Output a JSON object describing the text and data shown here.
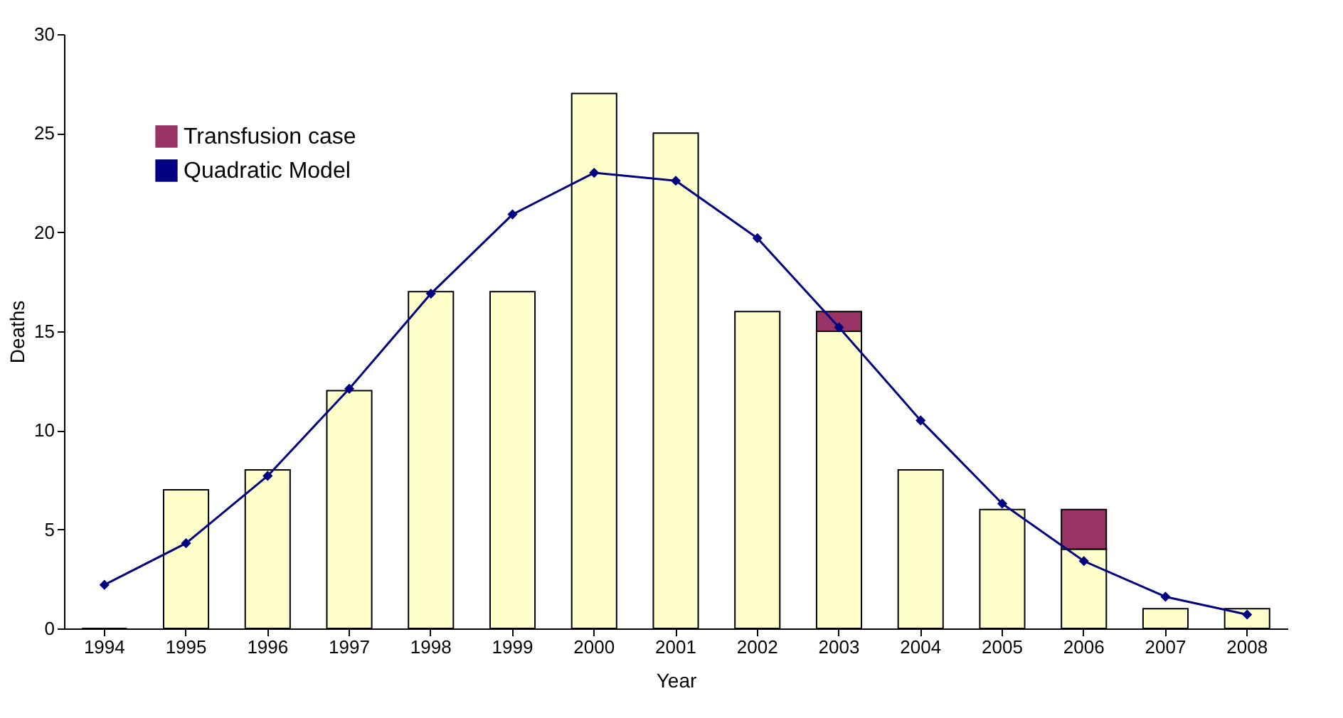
{
  "chart_data": {
    "type": "bar",
    "xlabel": "Year",
    "ylabel": "Deaths",
    "categories": [
      "1994",
      "1995",
      "1996",
      "1997",
      "1998",
      "1999",
      "2000",
      "2001",
      "2002",
      "2003",
      "2004",
      "2005",
      "2006",
      "2007",
      "2008"
    ],
    "stacked": true,
    "ylim": [
      0,
      30
    ],
    "yticks": [
      0,
      5,
      10,
      15,
      20,
      25,
      30
    ],
    "grid": false,
    "legend": "top left",
    "series": [
      {
        "color": "#ffffcc",
        "values": [
          0,
          7,
          8,
          12,
          17,
          17,
          27,
          25,
          16,
          15,
          8,
          6,
          4,
          1,
          1
        ]
      },
      {
        "type": "bar",
        "name": "Transfusion case",
        "color": "#993366",
        "values": [
          null,
          null,
          null,
          null,
          null,
          null,
          null,
          null,
          null,
          1,
          null,
          null,
          2,
          null,
          null
        ]
      },
      {
        "type": "line",
        "name": "Quadratic Model",
        "color": "#000080",
        "marker": "diamond",
        "values": [
          2.2,
          4.3,
          7.7,
          12.1,
          16.9,
          20.9,
          23.0,
          22.6,
          19.7,
          15.2,
          10.5,
          6.3,
          3.4,
          1.6,
          0.7
        ]
      }
    ]
  }
}
